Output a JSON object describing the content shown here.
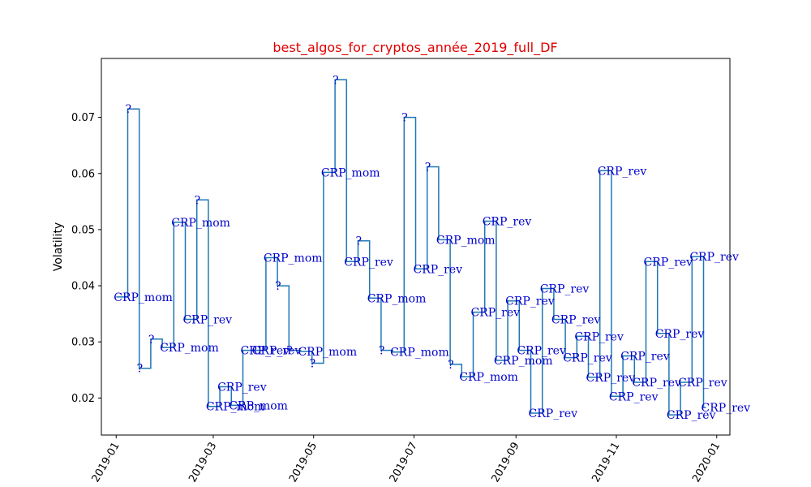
{
  "chart_data": {
    "type": "line",
    "line_style": "step",
    "title": "best_algos_for_cryptos_année_2019_full_DF",
    "xlabel": "",
    "ylabel": "Volatility",
    "x_ticks": [
      "2019-01",
      "2019-03",
      "2019-05",
      "2019-07",
      "2019-09",
      "2019-11",
      "2020-01"
    ],
    "y_ticks": [
      0.02,
      0.03,
      0.04,
      0.05,
      0.06,
      0.07
    ],
    "xlim": [
      "2018-12-23",
      "2020-01-09"
    ],
    "ylim": [
      0.0134,
      0.0805
    ],
    "colors": {
      "line": "#1f77b4",
      "labels": "#0000cc",
      "title": "#e00000"
    },
    "series": [
      {
        "points": [
          {
            "date": "2019-01-01",
            "value": 0.038,
            "label": "CRP_mom"
          },
          {
            "date": "2019-01-08",
            "value": 0.0715,
            "label": "?"
          },
          {
            "date": "2019-01-15",
            "value": 0.0253,
            "label": "?"
          },
          {
            "date": "2019-01-22",
            "value": 0.0305,
            "label": "?"
          },
          {
            "date": "2019-01-29",
            "value": 0.029,
            "label": "CRP_mom"
          },
          {
            "date": "2019-02-05",
            "value": 0.0513,
            "label": "CRP_mom"
          },
          {
            "date": "2019-02-12",
            "value": 0.034,
            "label": "CRP_rev"
          },
          {
            "date": "2019-02-19",
            "value": 0.0553,
            "label": "?"
          },
          {
            "date": "2019-02-26",
            "value": 0.0185,
            "label": "CRP_mom"
          },
          {
            "date": "2019-03-05",
            "value": 0.022,
            "label": "CRP_rev"
          },
          {
            "date": "2019-03-12",
            "value": 0.0187,
            "label": "CRP_mom"
          },
          {
            "date": "2019-03-19",
            "value": 0.0285,
            "label": "CRP_rev"
          },
          {
            "date": "2019-03-26",
            "value": 0.0285,
            "label": "CRP_rev"
          },
          {
            "date": "2019-04-02",
            "value": 0.045,
            "label": "CRP_mom"
          },
          {
            "date": "2019-04-09",
            "value": 0.04,
            "label": "?"
          },
          {
            "date": "2019-04-16",
            "value": 0.0285,
            "label": "?"
          },
          {
            "date": "2019-04-23",
            "value": 0.0283,
            "label": "CRP_mom"
          },
          {
            "date": "2019-04-30",
            "value": 0.0262,
            "label": "?"
          },
          {
            "date": "2019-05-07",
            "value": 0.0602,
            "label": "CRP_mom"
          },
          {
            "date": "2019-05-14",
            "value": 0.0767,
            "label": "?"
          },
          {
            "date": "2019-05-21",
            "value": 0.0443,
            "label": "CRP_rev"
          },
          {
            "date": "2019-05-28",
            "value": 0.048,
            "label": "?"
          },
          {
            "date": "2019-06-04",
            "value": 0.0378,
            "label": "CRP_mom"
          },
          {
            "date": "2019-06-11",
            "value": 0.0285,
            "label": "?"
          },
          {
            "date": "2019-06-18",
            "value": 0.0282,
            "label": "CRP_mom"
          },
          {
            "date": "2019-06-25",
            "value": 0.07,
            "label": "?"
          },
          {
            "date": "2019-07-02",
            "value": 0.043,
            "label": "CRP_rev"
          },
          {
            "date": "2019-07-09",
            "value": 0.0612,
            "label": "?"
          },
          {
            "date": "2019-07-16",
            "value": 0.0482,
            "label": "CRP_mom"
          },
          {
            "date": "2019-07-23",
            "value": 0.026,
            "label": "?"
          },
          {
            "date": "2019-07-30",
            "value": 0.0238,
            "label": "CRP_mom"
          },
          {
            "date": "2019-08-06",
            "value": 0.0353,
            "label": "CRP_rev"
          },
          {
            "date": "2019-08-13",
            "value": 0.0515,
            "label": "CRP_rev"
          },
          {
            "date": "2019-08-20",
            "value": 0.0267,
            "label": "CRP_mom"
          },
          {
            "date": "2019-08-27",
            "value": 0.0373,
            "label": "CRP_rev"
          },
          {
            "date": "2019-09-03",
            "value": 0.0285,
            "label": "CRP_rev"
          },
          {
            "date": "2019-09-10",
            "value": 0.0173,
            "label": "CRP_rev"
          },
          {
            "date": "2019-09-17",
            "value": 0.0395,
            "label": "CRP_rev"
          },
          {
            "date": "2019-09-24",
            "value": 0.034,
            "label": "CRP_rev"
          },
          {
            "date": "2019-10-01",
            "value": 0.0272,
            "label": "CRP_rev"
          },
          {
            "date": "2019-10-08",
            "value": 0.031,
            "label": "CRP_rev"
          },
          {
            "date": "2019-10-15",
            "value": 0.0237,
            "label": "CRP_rev"
          },
          {
            "date": "2019-10-22",
            "value": 0.0605,
            "label": "CRP_rev"
          },
          {
            "date": "2019-10-29",
            "value": 0.0203,
            "label": "CRP_rev"
          },
          {
            "date": "2019-11-05",
            "value": 0.0275,
            "label": "CRP_rev"
          },
          {
            "date": "2019-11-12",
            "value": 0.0228,
            "label": "CRP_rev"
          },
          {
            "date": "2019-11-19",
            "value": 0.0443,
            "label": "CRP_rev"
          },
          {
            "date": "2019-11-26",
            "value": 0.0315,
            "label": "CRP_rev"
          },
          {
            "date": "2019-12-03",
            "value": 0.017,
            "label": "CRP_rev"
          },
          {
            "date": "2019-12-10",
            "value": 0.0228,
            "label": "CRP_rev"
          },
          {
            "date": "2019-12-17",
            "value": 0.0452,
            "label": "CRP_rev"
          },
          {
            "date": "2019-12-24",
            "value": 0.0183,
            "label": "CRP_rev"
          }
        ]
      }
    ]
  }
}
